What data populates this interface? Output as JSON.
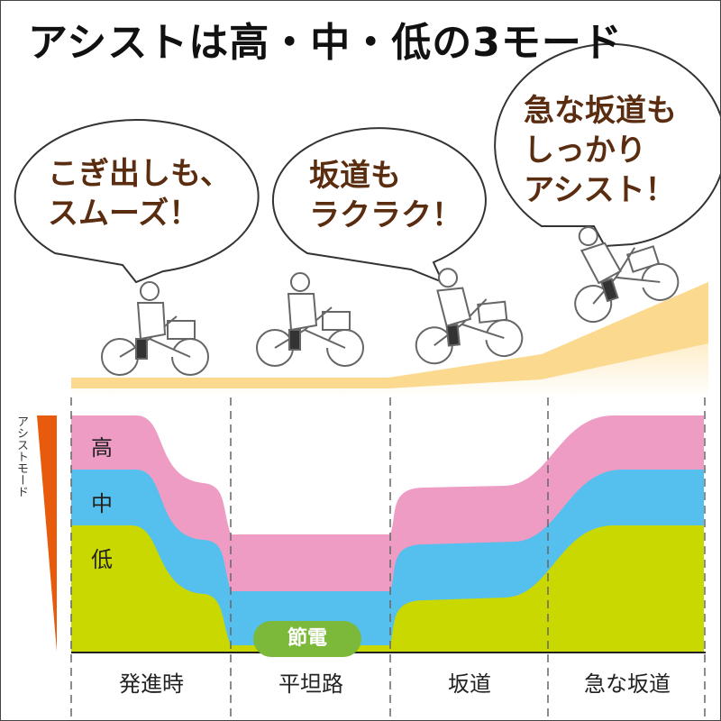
{
  "title": "アシストは高・中・低の3モード",
  "bubbles": [
    {
      "text": "こぎ出しも、\nスムーズ！"
    },
    {
      "text": "坂道も\nラクラク！"
    },
    {
      "text": "急な坂道も\nしっかり\nアシスト！"
    }
  ],
  "axis_label": "アシストモード",
  "modes": {
    "high": "高",
    "mid": "中",
    "low": "低"
  },
  "segments": [
    "発進時",
    "平坦路",
    "坂道",
    "急な坂道"
  ],
  "saving_label": "節電",
  "colors": {
    "high": "#ee9cc4",
    "mid": "#55c0ee",
    "low": "#c9d800",
    "saving": "#7cb83a",
    "bubble_text": "#5a2d10",
    "ground": "#fbd98e",
    "arrow": "#e85a0c"
  }
}
